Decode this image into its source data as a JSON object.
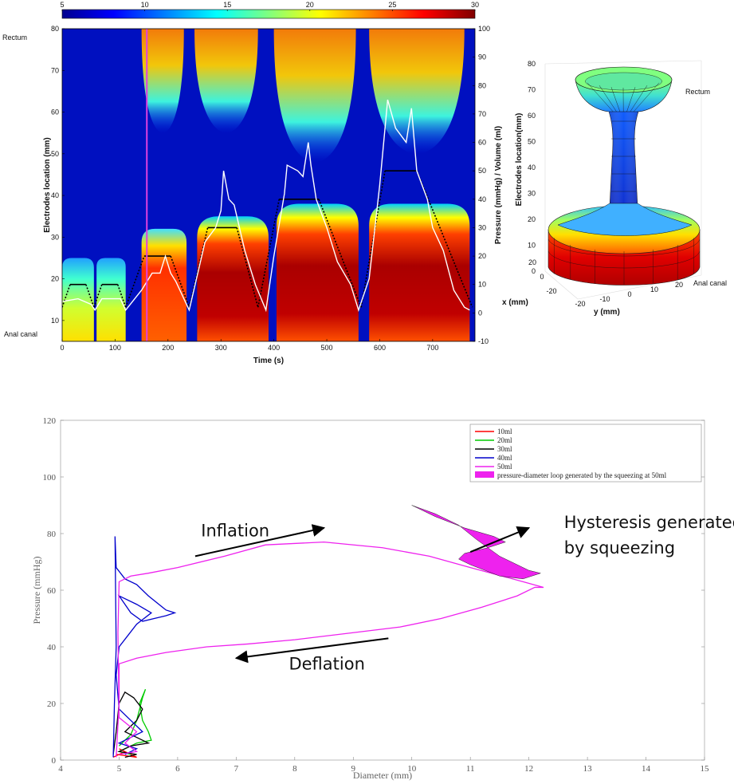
{
  "chart_data": [
    {
      "type": "heatmap",
      "xlabel": "Time (s)",
      "ylabel": "Electrodes location (mm)",
      "y2label": "Pressure (mmHg) / Volume (ml)",
      "xlim": [
        0,
        780
      ],
      "ylim": [
        5,
        80
      ],
      "y2lim": [
        -10,
        100
      ],
      "xticks": [
        0,
        100,
        200,
        300,
        400,
        500,
        600,
        700
      ],
      "yticks": [
        10,
        20,
        30,
        40,
        50,
        60,
        70,
        80
      ],
      "y2ticks": [
        -10,
        0,
        10,
        20,
        30,
        40,
        50,
        60,
        70,
        80,
        90,
        100
      ],
      "colorbar": {
        "ticks": [
          5,
          10,
          15,
          20,
          25,
          30
        ],
        "range": [
          5,
          30
        ],
        "colormap": "jet"
      },
      "top_label": "Rectum",
      "bottom_label": "Anal canal",
      "marker_time": 160,
      "marker_color": "#e040e0",
      "volume_series": {
        "color": "#000000",
        "style": "dotted-ramps-with-solid-plateaus",
        "points": [
          [
            0,
            2
          ],
          [
            15,
            10
          ],
          [
            45,
            10
          ],
          [
            60,
            2
          ],
          [
            75,
            10
          ],
          [
            105,
            10
          ],
          [
            120,
            2
          ],
          [
            155,
            20
          ],
          [
            205,
            20
          ],
          [
            240,
            2
          ],
          [
            275,
            30
          ],
          [
            330,
            30
          ],
          [
            370,
            2
          ],
          [
            410,
            40
          ],
          [
            485,
            40
          ],
          [
            565,
            2
          ],
          [
            610,
            50
          ],
          [
            670,
            50
          ],
          [
            775,
            2
          ]
        ]
      },
      "pressure_series": {
        "color": "#ffffff",
        "points": [
          [
            0,
            4
          ],
          [
            30,
            5
          ],
          [
            55,
            3
          ],
          [
            62,
            1
          ],
          [
            75,
            5
          ],
          [
            110,
            5
          ],
          [
            120,
            1
          ],
          [
            150,
            8
          ],
          [
            170,
            14
          ],
          [
            185,
            14
          ],
          [
            195,
            20
          ],
          [
            205,
            14
          ],
          [
            215,
            11
          ],
          [
            240,
            1
          ],
          [
            270,
            25
          ],
          [
            290,
            30
          ],
          [
            300,
            36
          ],
          [
            305,
            50
          ],
          [
            315,
            40
          ],
          [
            325,
            38
          ],
          [
            345,
            22
          ],
          [
            365,
            10
          ],
          [
            385,
            1
          ],
          [
            400,
            20
          ],
          [
            420,
            42
          ],
          [
            425,
            52
          ],
          [
            445,
            50
          ],
          [
            455,
            48
          ],
          [
            465,
            60
          ],
          [
            470,
            52
          ],
          [
            480,
            40
          ],
          [
            500,
            30
          ],
          [
            520,
            18
          ],
          [
            545,
            10
          ],
          [
            560,
            1
          ],
          [
            580,
            12
          ],
          [
            600,
            45
          ],
          [
            615,
            75
          ],
          [
            630,
            65
          ],
          [
            650,
            60
          ],
          [
            660,
            72
          ],
          [
            670,
            50
          ],
          [
            690,
            40
          ],
          [
            700,
            30
          ],
          [
            720,
            22
          ],
          [
            740,
            8
          ],
          [
            760,
            2
          ],
          [
            770,
            1
          ]
        ]
      },
      "shape_blocks": [
        {
          "t0": 0,
          "t1": 60,
          "top": 25,
          "level": "low"
        },
        {
          "t0": 65,
          "t1": 120,
          "top": 25,
          "level": "low"
        },
        {
          "t0": 150,
          "t1": 235,
          "top": 32,
          "level": "mid"
        },
        {
          "t0": 255,
          "t1": 390,
          "top": 35,
          "level": "high"
        },
        {
          "t0": 405,
          "t1": 560,
          "top": 38,
          "level": "high"
        },
        {
          "t0": 580,
          "t1": 770,
          "top": 38,
          "level": "high"
        }
      ],
      "upper_blooms": [
        {
          "t0": 150,
          "t1": 230,
          "bottom": 55
        },
        {
          "t0": 250,
          "t1": 370,
          "bottom": 55
        },
        {
          "t0": 400,
          "t1": 555,
          "bottom": 48
        },
        {
          "t0": 580,
          "t1": 760,
          "bottom": 50
        }
      ]
    },
    {
      "type": "surface3d",
      "zlabel": "Electrodes location(mm)",
      "xlabel": "x (mm)",
      "ylabel": "y (mm)",
      "zticks": [
        0,
        10,
        20,
        30,
        40,
        50,
        60,
        70,
        80
      ],
      "xticks": [
        20,
        0,
        -20
      ],
      "yticks": [
        -20,
        -10,
        0,
        10,
        20
      ],
      "top_label": "Rectum",
      "bottom_label": "Anal canal"
    },
    {
      "type": "line",
      "xlabel": "Diameter (mm)",
      "ylabel": "Pressure (mmHg)",
      "xlim": [
        4,
        15
      ],
      "ylim": [
        0,
        120
      ],
      "xticks": [
        4,
        5,
        6,
        7,
        8,
        9,
        10,
        11,
        12,
        13,
        14,
        15
      ],
      "yticks": [
        0,
        20,
        40,
        60,
        80,
        100,
        120
      ],
      "legend_position": "top-right",
      "series": [
        {
          "name": "10ml",
          "color": "#ff0000",
          "points": [
            [
              4.9,
              1
            ],
            [
              5.1,
              3
            ],
            [
              5.2,
              2
            ],
            [
              5.0,
              4
            ],
            [
              5.3,
              1
            ],
            [
              4.95,
              2
            ]
          ]
        },
        {
          "name": "20ml",
          "color": "#00cc00",
          "points": [
            [
              5.0,
              5
            ],
            [
              5.2,
              9
            ],
            [
              5.3,
              14
            ],
            [
              5.4,
              22
            ],
            [
              5.45,
              25
            ],
            [
              5.35,
              20
            ],
            [
              5.4,
              14
            ],
            [
              5.5,
              10
            ],
            [
              5.55,
              7
            ],
            [
              5.3,
              6
            ],
            [
              5.1,
              4
            ],
            [
              5.0,
              3
            ],
            [
              5.2,
              2
            ]
          ]
        },
        {
          "name": "30ml",
          "color": "#000000",
          "points": [
            [
              4.9,
              2
            ],
            [
              4.95,
              10
            ],
            [
              5.0,
              20
            ],
            [
              5.1,
              24
            ],
            [
              5.25,
              22
            ],
            [
              5.4,
              18
            ],
            [
              5.3,
              14
            ],
            [
              5.2,
              12
            ],
            [
              5.1,
              10
            ],
            [
              5.3,
              8
            ],
            [
              5.5,
              6
            ],
            [
              5.2,
              5
            ],
            [
              5.0,
              3
            ],
            [
              5.3,
              2
            ],
            [
              5.1,
              1
            ]
          ]
        },
        {
          "name": "40ml",
          "color": "#0000cc",
          "points": [
            [
              4.9,
              1
            ],
            [
              4.92,
              20
            ],
            [
              4.95,
              40
            ],
            [
              4.93,
              79
            ],
            [
              4.95,
              68
            ],
            [
              5.1,
              64
            ],
            [
              5.3,
              62
            ],
            [
              5.5,
              58
            ],
            [
              5.8,
              53
            ],
            [
              5.95,
              52
            ],
            [
              5.8,
              51
            ],
            [
              5.6,
              50
            ],
            [
              5.4,
              49
            ],
            [
              5.2,
              52
            ],
            [
              5.1,
              55
            ],
            [
              5.0,
              58
            ],
            [
              5.3,
              55
            ],
            [
              5.55,
              52
            ],
            [
              5.3,
              48
            ],
            [
              5.15,
              44
            ],
            [
              5.0,
              40
            ],
            [
              4.95,
              30
            ],
            [
              5.0,
              18
            ],
            [
              5.2,
              14
            ],
            [
              5.4,
              10
            ],
            [
              5.2,
              8
            ],
            [
              5.0,
              6
            ],
            [
              5.3,
              4
            ],
            [
              5.1,
              2
            ]
          ]
        },
        {
          "name": "50ml",
          "color": "#ee22ee",
          "points": [
            [
              4.95,
              1
            ],
            [
              5.0,
              20
            ],
            [
              5.0,
              34
            ],
            [
              5.3,
              36
            ],
            [
              5.8,
              38
            ],
            [
              6.5,
              40
            ],
            [
              7.2,
              41
            ],
            [
              8.0,
              42.5
            ],
            [
              9.0,
              45
            ],
            [
              9.8,
              47
            ],
            [
              10.5,
              50
            ],
            [
              11.2,
              54
            ],
            [
              11.8,
              58
            ],
            [
              12.1,
              61
            ],
            [
              12.25,
              61
            ],
            [
              11.9,
              63
            ],
            [
              11.0,
              68
            ],
            [
              10.3,
              72
            ],
            [
              9.5,
              75
            ],
            [
              8.5,
              77
            ],
            [
              7.5,
              76
            ],
            [
              6.8,
              72
            ],
            [
              6.0,
              68
            ],
            [
              5.5,
              66
            ],
            [
              5.2,
              65
            ],
            [
              5.0,
              63
            ],
            [
              4.98,
              45
            ],
            [
              5.0,
              15
            ],
            [
              5.3,
              10
            ],
            [
              5.1,
              6
            ],
            [
              5.3,
              3
            ],
            [
              5.0,
              2
            ]
          ]
        },
        {
          "name": "pressure-diameter loop generated by the squeezing at 50ml",
          "color": "#ee22ee",
          "type": "area",
          "points": [
            [
              10.0,
              90
            ],
            [
              10.4,
              87
            ],
            [
              10.8,
              83
            ],
            [
              11.1,
              78
            ],
            [
              11.5,
              72
            ],
            [
              12.0,
              67
            ],
            [
              12.2,
              66
            ],
            [
              11.9,
              64
            ],
            [
              11.5,
              65
            ],
            [
              11.0,
              69
            ],
            [
              10.8,
              71
            ],
            [
              10.9,
              73
            ],
            [
              11.3,
              75
            ],
            [
              11.6,
              77
            ],
            [
              11.4,
              79
            ],
            [
              10.9,
              82
            ],
            [
              10.4,
              86
            ],
            [
              10.0,
              90
            ]
          ]
        }
      ],
      "annotations": [
        {
          "text": "Inflation",
          "x": 6.4,
          "y": 79,
          "arrow_from": [
            6.3,
            72
          ],
          "arrow_to": [
            8.5,
            82
          ]
        },
        {
          "text": "Deflation",
          "x": 7.9,
          "y": 32,
          "arrow_from": [
            9.6,
            43
          ],
          "arrow_to": [
            7.0,
            36
          ]
        },
        {
          "text": "Hysteresis generated",
          "x": 12.6,
          "y": 82
        },
        {
          "text": "by squeezing",
          "x": 12.6,
          "y": 73
        },
        {
          "text": "",
          "arrow_from": [
            11.0,
            73.5
          ],
          "arrow_to": [
            12.0,
            82
          ]
        }
      ]
    }
  ]
}
